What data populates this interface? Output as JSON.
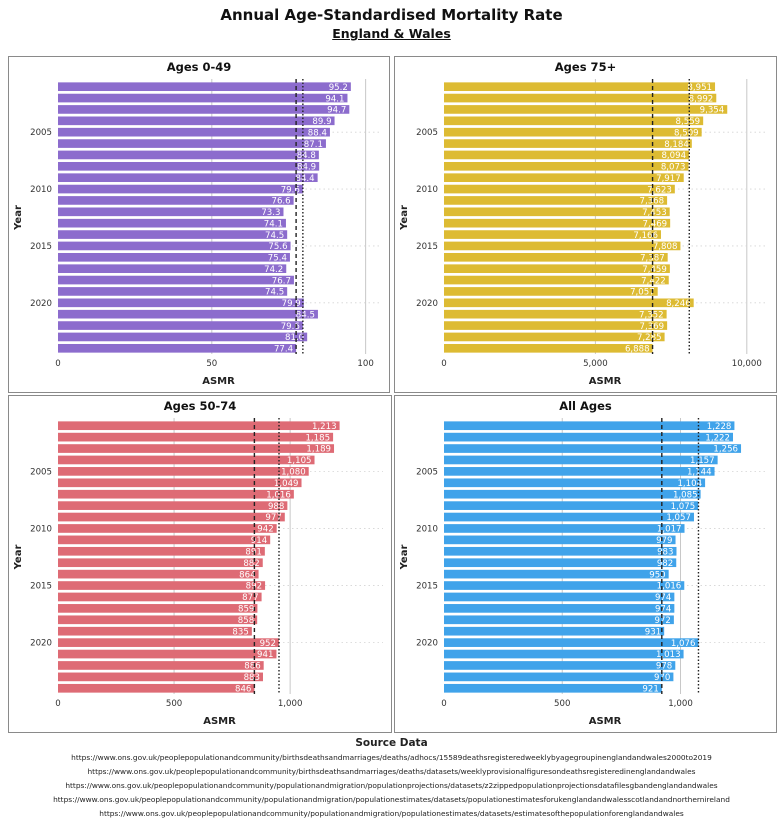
{
  "title": "Annual Age-Standardised Mortality Rate",
  "subtitle": "England & Wales",
  "source": {
    "title": "Source Data",
    "lines": [
      "https://www.ons.gov.uk/peoplepopulationandcommunity/birthsdeathsandmarriages/deaths/adhocs/15589deathsregisteredweeklybyagegroupinenglandandwales2000to2019",
      "https://www.ons.gov.uk/peoplepopulationandcommunity/birthsdeathsandmarriages/deaths/datasets/weeklyprovisionalfiguresondeathsregisteredinenglandandwales",
      "https://www.ons.gov.uk/peoplepopulationandcommunity/populationandmigration/populationprojections/datasets/z2zippedpopulationprojectionsdatafilesgbandenglandandwales",
      "https://www.ons.gov.uk/peoplepopulationandcommunity/populationandmigration/populationestimates/datasets/populationestimatesforukenglandandwalesscotlandandnorthernireland",
      "https://www.ons.gov.uk/peoplepopulationandcommunity/populationandmigration/populationestimates/datasets/estimatesofthepopulationforenglandandwales"
    ]
  },
  "chart_data": [
    {
      "type": "bar",
      "orientation": "horizontal",
      "title": "Ages 0-49",
      "xlabel": "ASMR",
      "ylabel": "Year",
      "color": "#8c6ccd",
      "years": [
        2001,
        2002,
        2003,
        2004,
        2005,
        2006,
        2007,
        2008,
        2009,
        2010,
        2011,
        2012,
        2013,
        2014,
        2015,
        2016,
        2017,
        2018,
        2019,
        2020,
        2021,
        2022,
        2023,
        2024
      ],
      "values": [
        95.2,
        94.1,
        94.7,
        89.9,
        88.4,
        87.1,
        84.8,
        84.9,
        84.4,
        79.6,
        76.6,
        73.3,
        74.1,
        74.5,
        75.6,
        75.4,
        74.2,
        76.7,
        74.5,
        79.9,
        84.5,
        79.6,
        81.0,
        77.4
      ],
      "labels": [
        "95.2",
        "94.1",
        "94.7",
        "89.9",
        "88.4",
        "87.1",
        "84.8",
        "84.9",
        "84.4",
        "79.6",
        "76.6",
        "73.3",
        "74.1",
        "74.5",
        "75.6",
        "75.4",
        "74.2",
        "76.7",
        "74.5",
        "79.9",
        "84.5",
        "79.6",
        "81.0",
        "77.4"
      ],
      "xlim": [
        0,
        105
      ],
      "xticks": [
        0,
        50,
        100
      ],
      "xtick_labels": [
        "0",
        "50",
        "100"
      ],
      "ytick_years": [
        2005,
        2010,
        2015,
        2020
      ],
      "ref_dashed": 77.4,
      "ref_dotted": 79.6
    },
    {
      "type": "bar",
      "orientation": "horizontal",
      "title": "Ages 75+",
      "xlabel": "ASMR",
      "ylabel": "Year",
      "color": "#ddbb33",
      "years": [
        2001,
        2002,
        2003,
        2004,
        2005,
        2006,
        2007,
        2008,
        2009,
        2010,
        2011,
        2012,
        2013,
        2014,
        2015,
        2016,
        2017,
        2018,
        2019,
        2020,
        2021,
        2022,
        2023,
        2024
      ],
      "values": [
        8951,
        8992,
        9354,
        8559,
        8509,
        8184,
        8094,
        8073,
        7917,
        7623,
        7368,
        7453,
        7469,
        7166,
        7808,
        7387,
        7459,
        7422,
        7057,
        8246,
        7352,
        7369,
        7285,
        6888
      ],
      "labels": [
        "8,951",
        "8,992",
        "9,354",
        "8,559",
        "8,509",
        "8,184",
        "8,094",
        "8,073",
        "7,917",
        "7,623",
        "7,368",
        "7,453",
        "7,469",
        "7,166",
        "7,808",
        "7,387",
        "7,459",
        "7,422",
        "7,057",
        "8,246",
        "7,352",
        "7,369",
        "7,285",
        "6,888"
      ],
      "xlim": [
        0,
        10700
      ],
      "xticks": [
        0,
        5000,
        10000
      ],
      "xtick_labels": [
        "0",
        "5,000",
        "10,000"
      ],
      "ytick_years": [
        2005,
        2010,
        2015,
        2020
      ],
      "ref_dashed": 6888,
      "ref_dotted": 8100
    },
    {
      "type": "bar",
      "orientation": "horizontal",
      "title": "Ages 50-74",
      "xlabel": "ASMR",
      "ylabel": "Year",
      "color": "#de6b75",
      "years": [
        2001,
        2002,
        2003,
        2004,
        2005,
        2006,
        2007,
        2008,
        2009,
        2010,
        2011,
        2012,
        2013,
        2014,
        2015,
        2016,
        2017,
        2018,
        2019,
        2020,
        2021,
        2022,
        2023,
        2024
      ],
      "values": [
        1213,
        1185,
        1189,
        1105,
        1080,
        1049,
        1016,
        988,
        977,
        942,
        914,
        891,
        882,
        864,
        892,
        877,
        859,
        858,
        835,
        952,
        941,
        886,
        883,
        846
      ],
      "labels": [
        "1,213",
        "1,185",
        "1,189",
        "1,105",
        "1,080",
        "1,049",
        "1,016",
        "988",
        "977",
        "942",
        "914",
        "891",
        "882",
        "864",
        "892",
        "877",
        "859",
        "858",
        "835",
        "952",
        "941",
        "886",
        "883",
        "846"
      ],
      "xlim": [
        0,
        1400
      ],
      "xticks": [
        0,
        500,
        1000
      ],
      "xtick_labels": [
        "0",
        "500",
        "1,000"
      ],
      "ytick_years": [
        2005,
        2010,
        2015,
        2020
      ],
      "ref_dashed": 846,
      "ref_dotted": 952
    },
    {
      "type": "bar",
      "orientation": "horizontal",
      "title": "All Ages",
      "xlabel": "ASMR",
      "ylabel": "Year",
      "color": "#40a3ea",
      "years": [
        2001,
        2002,
        2003,
        2004,
        2005,
        2006,
        2007,
        2008,
        2009,
        2010,
        2011,
        2012,
        2013,
        2014,
        2015,
        2016,
        2017,
        2018,
        2019,
        2020,
        2021,
        2022,
        2023,
        2024
      ],
      "values": [
        1228,
        1222,
        1256,
        1157,
        1144,
        1104,
        1085,
        1075,
        1057,
        1017,
        979,
        983,
        982,
        950,
        1016,
        974,
        974,
        972,
        931,
        1076,
        1013,
        978,
        970,
        921
      ],
      "labels": [
        "1,228",
        "1,222",
        "1,256",
        "1,157",
        "1,144",
        "1,104",
        "1,085",
        "1,075",
        "1,057",
        "1,017",
        "979",
        "983",
        "982",
        "950",
        "1,016",
        "974",
        "974",
        "972",
        "931",
        "1,076",
        "1,013",
        "978",
        "970",
        "921"
      ],
      "xlim": [
        0,
        1370
      ],
      "xticks": [
        0,
        500,
        1000
      ],
      "xtick_labels": [
        "0",
        "500",
        "1,000"
      ],
      "ytick_years": [
        2005,
        2010,
        2015,
        2020
      ],
      "ref_dashed": 921,
      "ref_dotted": 1076
    }
  ]
}
